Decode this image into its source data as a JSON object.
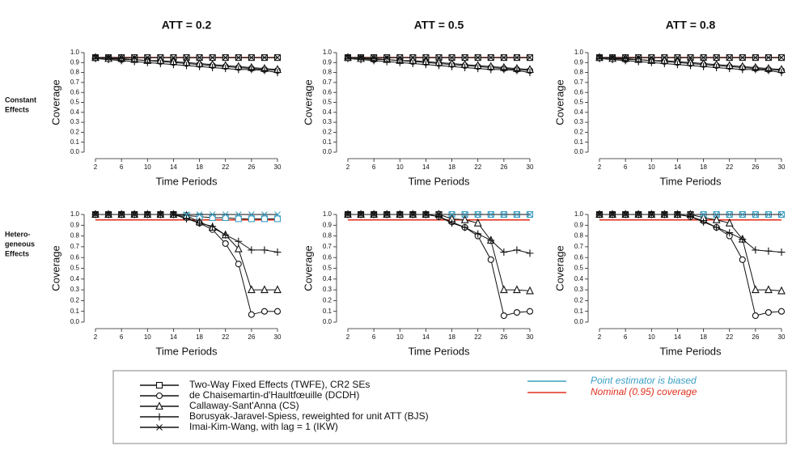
{
  "row_labels": [
    [
      "Constant",
      "Effects"
    ],
    [
      "Hetero-",
      "geneous",
      "Effects"
    ]
  ],
  "legend": [
    {
      "name": "Two-Way Fixed Effects (TWFE), CR2 SEs",
      "marker": "square"
    },
    {
      "name": "de Chaisemartin-d'Haultfœuille (DCDH)",
      "marker": "circle"
    },
    {
      "name": "Callaway-Sant'Anna (CS)",
      "marker": "triangle"
    },
    {
      "name": "Borusyak-Jaravel-Spiess, reweighted for unit ATT (BJS)",
      "marker": "plus"
    },
    {
      "name": "Imai-Kim-Wang, with lag = 1 (IKW)",
      "marker": "cross"
    }
  ],
  "reference_lines": [
    {
      "name": "Point estimator is biased",
      "color": "#3a9fc4"
    },
    {
      "name": "Nominal (0.95) coverage",
      "color": "#e0301e",
      "value": 0.95
    }
  ],
  "chart_data": [
    {
      "type": "line",
      "title": "ATT = 0.2",
      "xlabel": "Time Periods",
      "ylabel": "Coverage",
      "x": [
        2,
        4,
        6,
        8,
        10,
        12,
        14,
        16,
        18,
        20,
        22,
        24,
        26,
        28,
        30
      ],
      "xlim": [
        2,
        30
      ],
      "xticks": [
        2,
        6,
        10,
        14,
        18,
        22,
        26,
        30
      ],
      "ylim": [
        0,
        1
      ],
      "yticks": [
        {
          "value": 0,
          "label": "0.0"
        },
        0.1,
        0.2,
        0.3,
        0.4,
        0.5,
        0.6,
        0.7,
        0.8,
        0.9,
        {
          "value": 1,
          "label": "1.0"
        }
      ],
      "series": [
        {
          "marker": "square",
          "values": [
            0.95,
            0.95,
            0.95,
            0.95,
            0.95,
            0.95,
            0.95,
            0.95,
            0.95,
            0.95,
            0.95,
            0.95,
            0.95,
            0.95,
            0.95
          ]
        },
        {
          "marker": "circle",
          "values": [
            0.95,
            0.94,
            0.93,
            0.93,
            0.92,
            0.91,
            0.9,
            0.89,
            0.88,
            0.87,
            0.86,
            0.85,
            0.84,
            0.83,
            0.82
          ]
        },
        {
          "marker": "triangle",
          "values": [
            0.95,
            0.94,
            0.94,
            0.93,
            0.92,
            0.92,
            0.91,
            0.9,
            0.89,
            0.88,
            0.87,
            0.86,
            0.85,
            0.84,
            0.83
          ]
        },
        {
          "marker": "plus",
          "values": [
            0.94,
            0.93,
            0.92,
            0.91,
            0.9,
            0.89,
            0.88,
            0.87,
            0.86,
            0.85,
            0.84,
            0.83,
            0.83,
            0.82,
            0.8
          ]
        },
        {
          "marker": "cross",
          "values": [
            0.95,
            0.95,
            0.95,
            0.95,
            0.95,
            0.95,
            0.95,
            0.95,
            0.95,
            0.95,
            0.95,
            0.95,
            0.95,
            0.95,
            0.95
          ]
        }
      ]
    },
    {
      "type": "line",
      "title": "ATT = 0.5",
      "xlabel": "Time Periods",
      "ylabel": "Coverage",
      "x": [
        2,
        4,
        6,
        8,
        10,
        12,
        14,
        16,
        18,
        20,
        22,
        24,
        26,
        28,
        30
      ],
      "xlim": [
        2,
        30
      ],
      "xticks": [
        2,
        6,
        10,
        14,
        18,
        22,
        26,
        30
      ],
      "ylim": [
        0,
        1
      ],
      "yticks": [
        {
          "value": 0,
          "label": "0.0"
        },
        0.1,
        0.2,
        0.3,
        0.4,
        0.5,
        0.6,
        0.7,
        0.8,
        0.9,
        {
          "value": 1,
          "label": "1.0"
        }
      ],
      "series": [
        {
          "marker": "square",
          "values": [
            0.95,
            0.95,
            0.95,
            0.95,
            0.95,
            0.95,
            0.95,
            0.95,
            0.95,
            0.95,
            0.95,
            0.95,
            0.95,
            0.95,
            0.95
          ]
        },
        {
          "marker": "circle",
          "values": [
            0.95,
            0.94,
            0.93,
            0.93,
            0.92,
            0.91,
            0.9,
            0.89,
            0.88,
            0.87,
            0.86,
            0.85,
            0.84,
            0.83,
            0.82
          ]
        },
        {
          "marker": "triangle",
          "values": [
            0.95,
            0.94,
            0.94,
            0.93,
            0.92,
            0.92,
            0.91,
            0.9,
            0.89,
            0.88,
            0.87,
            0.86,
            0.85,
            0.84,
            0.83
          ]
        },
        {
          "marker": "plus",
          "values": [
            0.94,
            0.93,
            0.92,
            0.91,
            0.9,
            0.89,
            0.88,
            0.87,
            0.86,
            0.85,
            0.84,
            0.83,
            0.83,
            0.82,
            0.8
          ]
        },
        {
          "marker": "cross",
          "values": [
            0.95,
            0.95,
            0.95,
            0.95,
            0.95,
            0.95,
            0.95,
            0.95,
            0.95,
            0.95,
            0.95,
            0.95,
            0.95,
            0.95,
            0.95
          ]
        }
      ]
    },
    {
      "type": "line",
      "title": "ATT = 0.8",
      "xlabel": "Time Periods",
      "ylabel": "Coverage",
      "x": [
        2,
        4,
        6,
        8,
        10,
        12,
        14,
        16,
        18,
        20,
        22,
        24,
        26,
        28,
        30
      ],
      "xlim": [
        2,
        30
      ],
      "xticks": [
        2,
        6,
        10,
        14,
        18,
        22,
        26,
        30
      ],
      "ylim": [
        0,
        1
      ],
      "yticks": [
        {
          "value": 0,
          "label": "0.0"
        },
        0.1,
        0.2,
        0.3,
        0.4,
        0.5,
        0.6,
        0.7,
        0.8,
        0.9,
        {
          "value": 1,
          "label": "1.0"
        }
      ],
      "series": [
        {
          "marker": "square",
          "values": [
            0.95,
            0.95,
            0.95,
            0.95,
            0.95,
            0.95,
            0.95,
            0.95,
            0.95,
            0.95,
            0.95,
            0.95,
            0.95,
            0.95,
            0.95
          ]
        },
        {
          "marker": "circle",
          "values": [
            0.95,
            0.94,
            0.93,
            0.93,
            0.92,
            0.91,
            0.9,
            0.89,
            0.88,
            0.87,
            0.86,
            0.85,
            0.84,
            0.83,
            0.82
          ]
        },
        {
          "marker": "triangle",
          "values": [
            0.95,
            0.94,
            0.94,
            0.93,
            0.92,
            0.92,
            0.91,
            0.9,
            0.89,
            0.88,
            0.87,
            0.86,
            0.85,
            0.84,
            0.83
          ]
        },
        {
          "marker": "plus",
          "values": [
            0.94,
            0.93,
            0.92,
            0.91,
            0.9,
            0.89,
            0.88,
            0.87,
            0.86,
            0.85,
            0.84,
            0.83,
            0.83,
            0.82,
            0.8
          ]
        },
        {
          "marker": "cross",
          "values": [
            0.95,
            0.95,
            0.95,
            0.95,
            0.95,
            0.95,
            0.95,
            0.95,
            0.95,
            0.95,
            0.95,
            0.95,
            0.95,
            0.95,
            0.95
          ]
        }
      ]
    },
    {
      "type": "line",
      "xlabel": "Time Periods",
      "ylabel": "Coverage",
      "x": [
        2,
        4,
        6,
        8,
        10,
        12,
        14,
        16,
        18,
        20,
        22,
        24,
        26,
        28,
        30
      ],
      "xlim": [
        2,
        30
      ],
      "xticks": [
        2,
        6,
        10,
        14,
        18,
        22,
        26,
        30
      ],
      "ylim": [
        0,
        1
      ],
      "yticks": [
        {
          "value": 0,
          "label": "0.0"
        },
        0.1,
        0.2,
        0.3,
        0.4,
        0.5,
        0.6,
        0.7,
        0.8,
        0.9,
        {
          "value": 1,
          "label": "1.0"
        }
      ],
      "series": [
        {
          "marker": "square",
          "biased_from": 16,
          "values": [
            1,
            1,
            1,
            1,
            1,
            1,
            1,
            0.99,
            0.98,
            0.97,
            0.97,
            0.96,
            0.96,
            0.96,
            0.96
          ]
        },
        {
          "marker": "circle",
          "values": [
            1,
            1,
            1,
            1,
            1,
            1,
            1,
            0.97,
            0.92,
            0.86,
            0.73,
            0.54,
            0.07,
            0.1,
            0.1
          ]
        },
        {
          "marker": "triangle",
          "values": [
            1,
            1,
            1,
            1,
            1,
            1,
            1,
            0.99,
            0.93,
            0.88,
            0.81,
            0.68,
            0.3,
            0.3,
            0.3
          ]
        },
        {
          "marker": "plus",
          "values": [
            1,
            1,
            1,
            1,
            1,
            1,
            1,
            0.96,
            0.92,
            0.89,
            0.81,
            0.75,
            0.67,
            0.67,
            0.65
          ]
        },
        {
          "marker": "cross",
          "biased_from": 16,
          "values": [
            1,
            1,
            1,
            1,
            1,
            1,
            1,
            1,
            1,
            1,
            1,
            1,
            1,
            1,
            1
          ]
        }
      ]
    },
    {
      "type": "line",
      "xlabel": "Time Periods",
      "ylabel": "Coverage",
      "x": [
        2,
        4,
        6,
        8,
        10,
        12,
        14,
        16,
        18,
        20,
        22,
        24,
        26,
        28,
        30
      ],
      "xlim": [
        2,
        30
      ],
      "xticks": [
        2,
        6,
        10,
        14,
        18,
        22,
        26,
        30
      ],
      "ylim": [
        0,
        1
      ],
      "yticks": [
        {
          "value": 0,
          "label": "0.0"
        },
        0.1,
        0.2,
        0.3,
        0.4,
        0.5,
        0.6,
        0.7,
        0.8,
        0.9,
        {
          "value": 1,
          "label": "1.0"
        }
      ],
      "series": [
        {
          "marker": "square",
          "biased_from": 18,
          "values": [
            1,
            1,
            1,
            1,
            1,
            1,
            1,
            1,
            1,
            1,
            1,
            1,
            1,
            1,
            1
          ]
        },
        {
          "marker": "circle",
          "values": [
            1,
            1,
            1,
            1,
            1,
            1,
            1,
            0.98,
            0.93,
            0.88,
            0.8,
            0.58,
            0.06,
            0.09,
            0.1
          ]
        },
        {
          "marker": "triangle",
          "values": [
            1,
            1,
            1,
            1,
            1,
            1,
            1,
            1,
            0.96,
            0.95,
            0.92,
            0.76,
            0.3,
            0.3,
            0.29
          ]
        },
        {
          "marker": "plus",
          "values": [
            1,
            1,
            1,
            1,
            1,
            1,
            1,
            0.98,
            0.92,
            0.88,
            0.82,
            0.76,
            0.65,
            0.67,
            0.64
          ]
        },
        {
          "marker": "cross",
          "biased_from": 18,
          "values": [
            1,
            1,
            1,
            1,
            1,
            1,
            1,
            1,
            1,
            1,
            1,
            1,
            1,
            1,
            1
          ]
        }
      ]
    },
    {
      "type": "line",
      "xlabel": "Time Periods",
      "ylabel": "Coverage",
      "x": [
        2,
        4,
        6,
        8,
        10,
        12,
        14,
        16,
        18,
        20,
        22,
        24,
        26,
        28,
        30
      ],
      "xlim": [
        2,
        30
      ],
      "xticks": [
        2,
        6,
        10,
        14,
        18,
        22,
        26,
        30
      ],
      "ylim": [
        0,
        1
      ],
      "yticks": [
        {
          "value": 0,
          "label": "0.0"
        },
        0.1,
        0.2,
        0.3,
        0.4,
        0.5,
        0.6,
        0.7,
        0.8,
        0.9,
        {
          "value": 1,
          "label": "1.0"
        }
      ],
      "series": [
        {
          "marker": "square",
          "biased_from": 18,
          "values": [
            1,
            1,
            1,
            1,
            1,
            1,
            1,
            1,
            1,
            1,
            1,
            1,
            1,
            1,
            1
          ]
        },
        {
          "marker": "circle",
          "values": [
            1,
            1,
            1,
            1,
            1,
            1,
            1,
            0.98,
            0.94,
            0.88,
            0.8,
            0.58,
            0.06,
            0.09,
            0.1
          ]
        },
        {
          "marker": "triangle",
          "values": [
            1,
            1,
            1,
            1,
            1,
            1,
            1,
            1,
            0.97,
            0.95,
            0.92,
            0.77,
            0.3,
            0.3,
            0.29
          ]
        },
        {
          "marker": "plus",
          "values": [
            1,
            1,
            1,
            1,
            1,
            1,
            1,
            0.98,
            0.93,
            0.88,
            0.83,
            0.77,
            0.67,
            0.66,
            0.65
          ]
        },
        {
          "marker": "cross",
          "biased_from": 18,
          "values": [
            1,
            1,
            1,
            1,
            1,
            1,
            1,
            1,
            1,
            1,
            1,
            1,
            1,
            1,
            1
          ]
        }
      ]
    }
  ]
}
